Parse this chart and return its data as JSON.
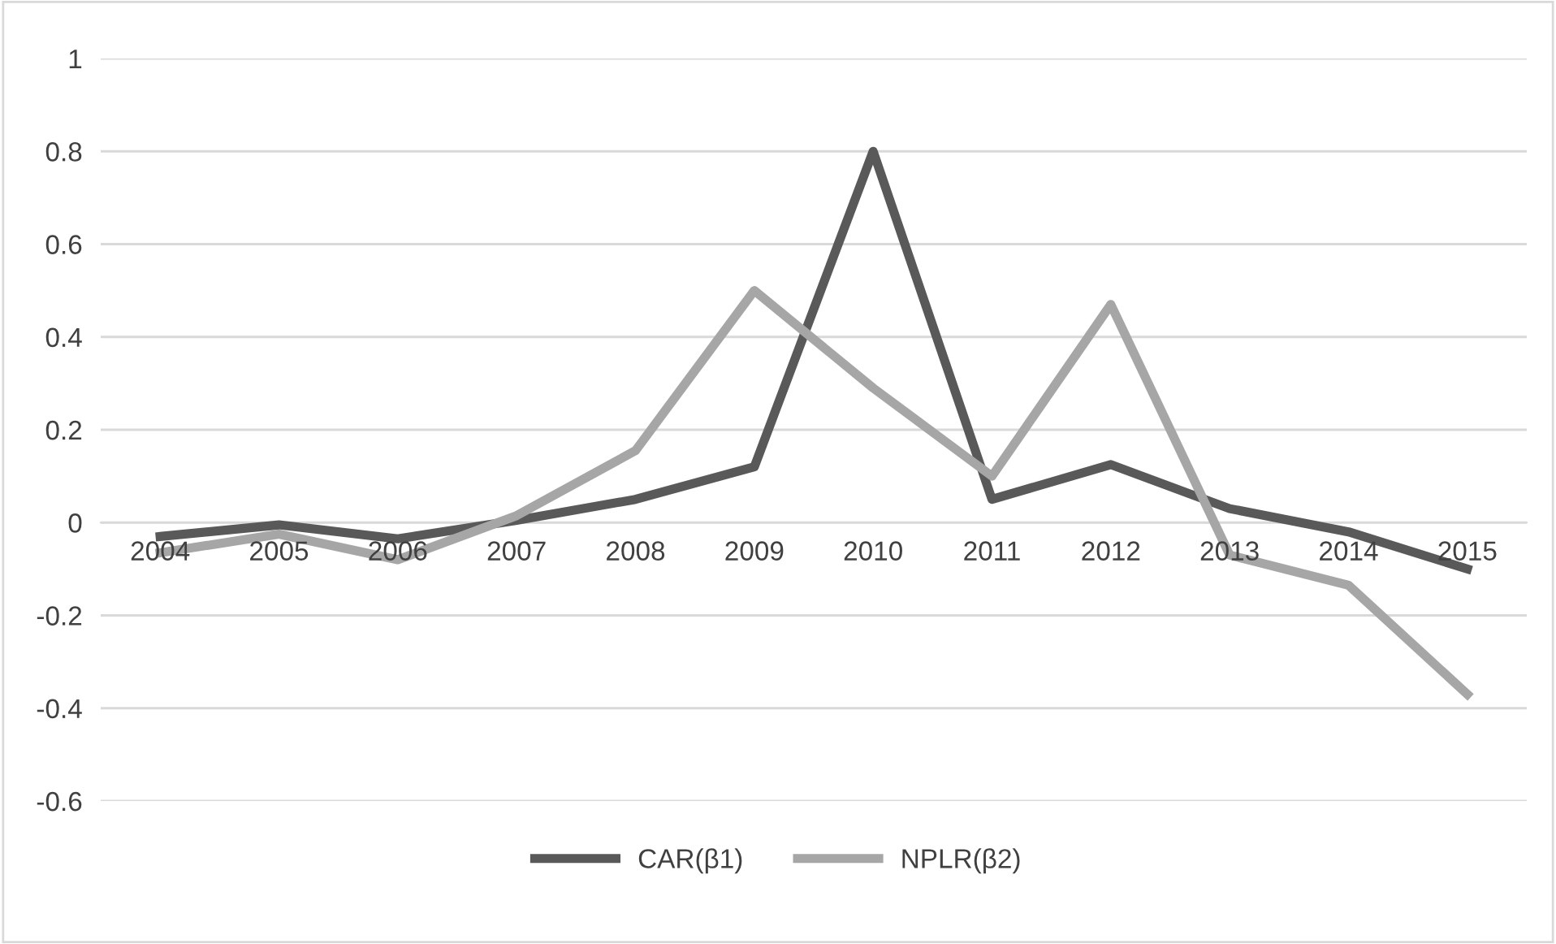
{
  "chart_data": {
    "type": "line",
    "categories": [
      "2004",
      "2005",
      "2006",
      "2007",
      "2008",
      "2009",
      "2010",
      "2011",
      "2012",
      "2013",
      "2014",
      "2015"
    ],
    "series": [
      {
        "name": "CAR(β1)",
        "color": "#595959",
        "values": [
          -0.03,
          -0.005,
          -0.035,
          0.005,
          0.05,
          0.12,
          0.8,
          0.05,
          0.125,
          0.03,
          -0.02,
          -0.1
        ]
      },
      {
        "name": "NPLR(β2)",
        "color": "#a6a6a6",
        "values": [
          -0.065,
          -0.025,
          -0.08,
          0.015,
          0.155,
          0.5,
          0.29,
          0.1,
          0.47,
          -0.07,
          -0.135,
          -0.37
        ]
      }
    ],
    "ylim": [
      -0.6,
      1
    ],
    "yticks": [
      -0.6,
      -0.4,
      -0.2,
      0,
      0.2,
      0.4,
      0.6,
      0.8,
      1
    ],
    "grid": "y",
    "legend": "bottom",
    "marker": "none",
    "line_style": "solid"
  }
}
